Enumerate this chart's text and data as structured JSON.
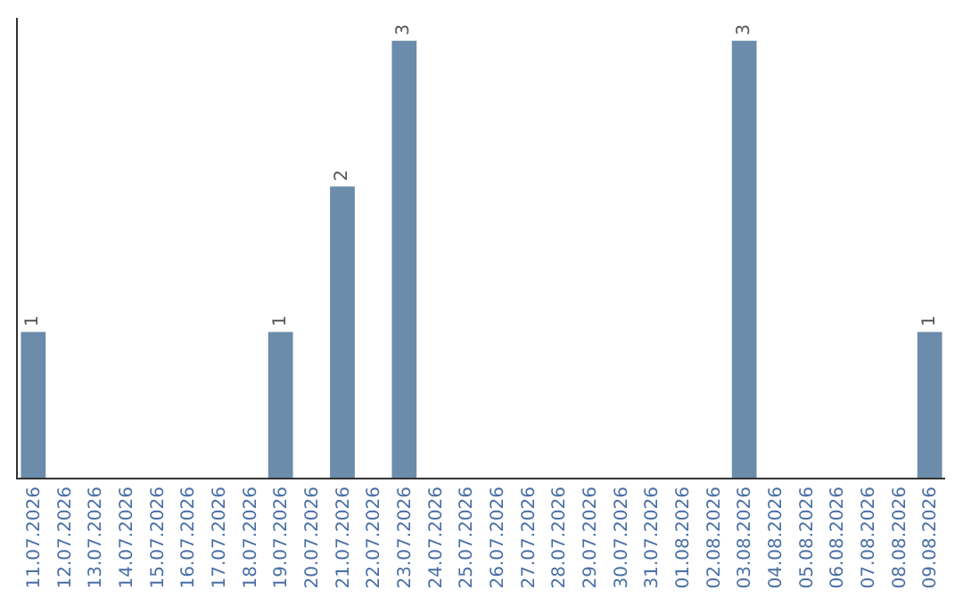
{
  "chart_data": {
    "type": "bar",
    "categories": [
      "11.07.2026",
      "12.07.2026",
      "13.07.2026",
      "14.07.2026",
      "15.07.2026",
      "16.07.2026",
      "17.07.2026",
      "18.07.2026",
      "19.07.2026",
      "20.07.2026",
      "21.07.2026",
      "22.07.2026",
      "23.07.2026",
      "24.07.2026",
      "25.07.2026",
      "26.07.2026",
      "27.07.2026",
      "28.07.2026",
      "29.07.2026",
      "30.07.2026",
      "31.07.2026",
      "01.08.2026",
      "02.08.2026",
      "03.08.2026",
      "04.08.2026",
      "05.08.2026",
      "06.08.2026",
      "07.08.2026",
      "08.08.2026",
      "09.08.2026"
    ],
    "values": [
      1,
      0,
      0,
      0,
      0,
      0,
      0,
      0,
      1,
      0,
      2,
      0,
      3,
      0,
      0,
      0,
      0,
      0,
      0,
      0,
      0,
      0,
      0,
      3,
      0,
      0,
      0,
      0,
      0,
      1
    ],
    "value_labels": [
      "1",
      null,
      null,
      null,
      null,
      null,
      null,
      null,
      "1",
      null,
      "2",
      null,
      "3",
      null,
      null,
      null,
      null,
      null,
      null,
      null,
      null,
      null,
      null,
      "3",
      null,
      null,
      null,
      null,
      null,
      "1"
    ],
    "color": "#6b8caa",
    "legend": false,
    "tick_labels": "x"
  }
}
